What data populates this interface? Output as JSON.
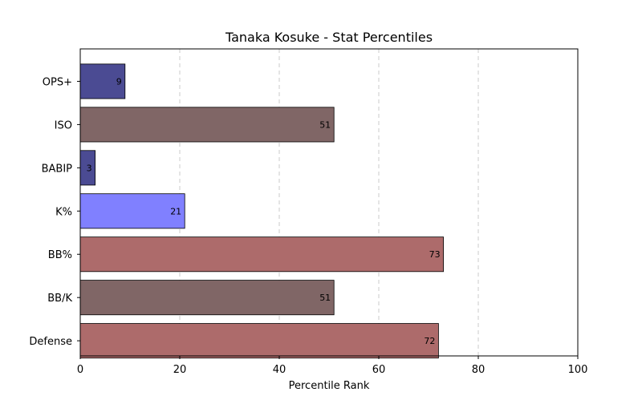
{
  "chart_data": {
    "type": "bar",
    "orientation": "horizontal",
    "title": "Tanaka Kosuke - Stat Percentiles",
    "xlabel": "Percentile Rank",
    "ylabel": "",
    "xlim": [
      0,
      100
    ],
    "xticks": [
      "0",
      "20",
      "40",
      "60",
      "80",
      "100"
    ],
    "grid": "x, dashed",
    "categories": [
      "OPS+",
      "ISO",
      "BABIP",
      "K%",
      "BB%",
      "BB/K",
      "Defense"
    ],
    "values": [
      9,
      51,
      3,
      21,
      73,
      51,
      72
    ],
    "data_labels": [
      "9",
      "51",
      "3",
      "21",
      "73",
      "51",
      "72"
    ],
    "bar_colors": [
      "#4b4b93",
      "#806666",
      "#4b4b93",
      "#8080ff",
      "#ad6b6b",
      "#806666",
      "#ad6b6b"
    ]
  }
}
